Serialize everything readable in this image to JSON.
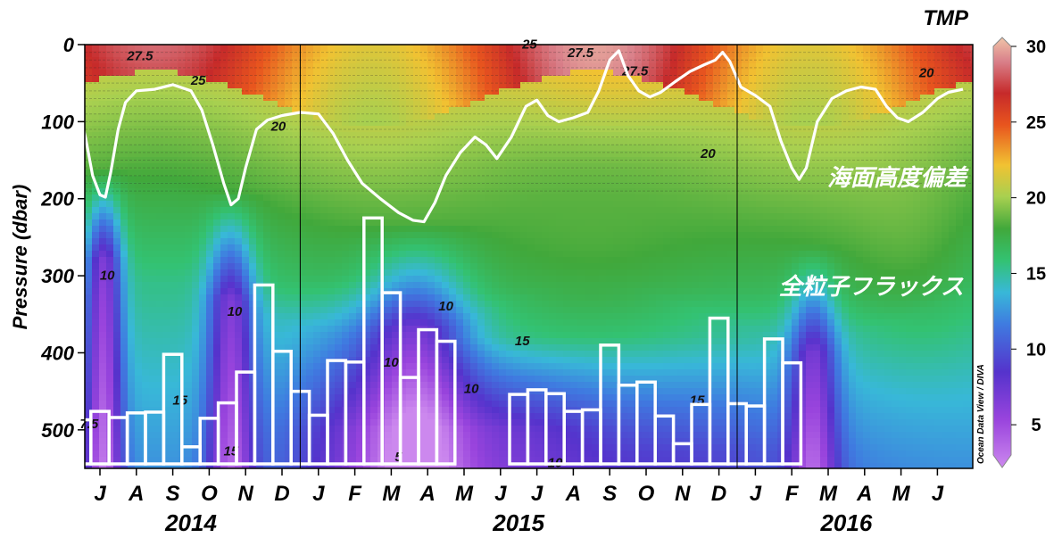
{
  "chart_data": {
    "type": "heatmap",
    "title": "TMP",
    "ylabel": "Pressure (dbar)",
    "xlabel": "",
    "ylim": [
      550,
      0
    ],
    "yticks": [
      0,
      100,
      200,
      300,
      400,
      500
    ],
    "colorbar": {
      "ticks": [
        5,
        10,
        15,
        20,
        25,
        30
      ],
      "range": [
        3,
        30
      ],
      "stops": [
        {
          "v": 3,
          "c": "#cc88ee"
        },
        {
          "v": 6,
          "c": "#9944dd"
        },
        {
          "v": 9,
          "c": "#5533cc"
        },
        {
          "v": 12,
          "c": "#3f7be0"
        },
        {
          "v": 14,
          "c": "#38b8d8"
        },
        {
          "v": 16,
          "c": "#33c272"
        },
        {
          "v": 18,
          "c": "#41a83b"
        },
        {
          "v": 20,
          "c": "#a8d050"
        },
        {
          "v": 22,
          "c": "#f1c232"
        },
        {
          "v": 24.5,
          "c": "#e8551e"
        },
        {
          "v": 26.5,
          "c": "#c62a2a"
        },
        {
          "v": 28.5,
          "c": "#d9808a"
        },
        {
          "v": 30,
          "c": "#f0c4a8"
        }
      ]
    },
    "watermark": "Ocean Data View / DIVA",
    "months": [
      "J",
      "A",
      "S",
      "O",
      "N",
      "D",
      "J",
      "F",
      "M",
      "A",
      "M",
      "J",
      "J",
      "A",
      "S",
      "O",
      "N",
      "D",
      "J",
      "F",
      "M",
      "A",
      "M",
      "J"
    ],
    "years": [
      {
        "label": "2014",
        "center_month": 2.5
      },
      {
        "label": "2015",
        "center_month": 11.5
      },
      {
        "label": "2016",
        "center_month": 20.5
      }
    ],
    "year_dividers": [
      5.5,
      17.5
    ],
    "contour_labels": [
      {
        "text": "27.5",
        "m": 1.1,
        "p": 20
      },
      {
        "text": "25",
        "m": 2.7,
        "p": 52
      },
      {
        "text": "20",
        "m": 4.9,
        "p": 112
      },
      {
        "text": "10",
        "m": 0.2,
        "p": 305
      },
      {
        "text": "10",
        "m": 3.7,
        "p": 352
      },
      {
        "text": "15",
        "m": 2.2,
        "p": 467
      },
      {
        "text": "15",
        "m": 3.6,
        "p": 533
      },
      {
        "text": "7.5",
        "m": -0.3,
        "p": 498
      },
      {
        "text": "10",
        "m": 8.0,
        "p": 418
      },
      {
        "text": "10",
        "m": 9.5,
        "p": 345
      },
      {
        "text": "10",
        "m": 10.2,
        "p": 452
      },
      {
        "text": "15",
        "m": 11.6,
        "p": 390
      },
      {
        "text": "10",
        "m": 12.5,
        "p": 548
      },
      {
        "text": "25",
        "m": 11.8,
        "p": 5
      },
      {
        "text": "27.5",
        "m": 13.2,
        "p": 16
      },
      {
        "text": "27.5",
        "m": 14.7,
        "p": 40
      },
      {
        "text": "20",
        "m": 16.7,
        "p": 147
      },
      {
        "text": "15",
        "m": 16.4,
        "p": 467
      },
      {
        "text": "20",
        "m": 22.7,
        "p": 42
      },
      {
        "text": "5",
        "m": 8.2,
        "p": 541
      }
    ],
    "series": [
      {
        "name": "海面高度偏差",
        "type": "line",
        "color": "#ffffff",
        "points": [
          [
            -0.6,
            80
          ],
          [
            -0.4,
            120
          ],
          [
            -0.2,
            170
          ],
          [
            0,
            195
          ],
          [
            0.15,
            198
          ],
          [
            0.3,
            165
          ],
          [
            0.5,
            110
          ],
          [
            0.7,
            75
          ],
          [
            1.0,
            60
          ],
          [
            1.5,
            58
          ],
          [
            2.0,
            52
          ],
          [
            2.5,
            60
          ],
          [
            2.8,
            85
          ],
          [
            3.1,
            130
          ],
          [
            3.4,
            180
          ],
          [
            3.6,
            208
          ],
          [
            3.8,
            200
          ],
          [
            4.0,
            160
          ],
          [
            4.3,
            110
          ],
          [
            4.6,
            98
          ],
          [
            5.0,
            92
          ],
          [
            5.5,
            88
          ],
          [
            6.0,
            90
          ],
          [
            6.4,
            115
          ],
          [
            6.8,
            150
          ],
          [
            7.2,
            180
          ],
          [
            7.7,
            200
          ],
          [
            8.2,
            218
          ],
          [
            8.6,
            228
          ],
          [
            8.9,
            230
          ],
          [
            9.2,
            205
          ],
          [
            9.5,
            170
          ],
          [
            9.9,
            140
          ],
          [
            10.3,
            120
          ],
          [
            10.6,
            130
          ],
          [
            10.9,
            148
          ],
          [
            11.3,
            120
          ],
          [
            11.7,
            80
          ],
          [
            12.0,
            72
          ],
          [
            12.3,
            92
          ],
          [
            12.6,
            100
          ],
          [
            13.0,
            95
          ],
          [
            13.4,
            88
          ],
          [
            13.7,
            60
          ],
          [
            14.0,
            20
          ],
          [
            14.25,
            8
          ],
          [
            14.5,
            40
          ],
          [
            14.8,
            60
          ],
          [
            15.1,
            68
          ],
          [
            15.4,
            62
          ],
          [
            15.8,
            48
          ],
          [
            16.2,
            35
          ],
          [
            16.6,
            26
          ],
          [
            16.9,
            20
          ],
          [
            17.1,
            10
          ],
          [
            17.3,
            22
          ],
          [
            17.6,
            55
          ],
          [
            18.0,
            66
          ],
          [
            18.4,
            80
          ],
          [
            18.7,
            125
          ],
          [
            19.0,
            160
          ],
          [
            19.2,
            175
          ],
          [
            19.4,
            160
          ],
          [
            19.7,
            100
          ],
          [
            20.1,
            70
          ],
          [
            20.5,
            60
          ],
          [
            20.9,
            55
          ],
          [
            21.3,
            58
          ],
          [
            21.6,
            80
          ],
          [
            21.9,
            95
          ],
          [
            22.2,
            100
          ],
          [
            22.6,
            88
          ],
          [
            23.0,
            70
          ],
          [
            23.3,
            62
          ],
          [
            23.7,
            58
          ]
        ]
      },
      {
        "name": "全粒子フラックス",
        "type": "bar",
        "color": "#ffffff",
        "bars": [
          [
            -0.75,
            -0.25,
            487
          ],
          [
            -0.25,
            0.25,
            476
          ],
          [
            0.25,
            0.75,
            484
          ],
          [
            0.75,
            1.25,
            478
          ],
          [
            1.25,
            1.75,
            477
          ],
          [
            1.75,
            2.25,
            402
          ],
          [
            2.25,
            2.75,
            522
          ],
          [
            2.75,
            3.25,
            485
          ],
          [
            3.25,
            3.75,
            465
          ],
          [
            3.75,
            4.25,
            425
          ],
          [
            4.25,
            4.75,
            312
          ],
          [
            4.75,
            5.25,
            398
          ],
          [
            5.25,
            5.75,
            450
          ],
          [
            5.75,
            6.25,
            481
          ],
          [
            6.25,
            6.75,
            410
          ],
          [
            6.75,
            7.25,
            412
          ],
          [
            7.25,
            7.75,
            225
          ],
          [
            7.75,
            8.25,
            322
          ],
          [
            8.25,
            8.75,
            432
          ],
          [
            8.75,
            9.25,
            370
          ],
          [
            9.25,
            9.75,
            385
          ],
          [
            9.75,
            10.25,
            545
          ],
          [
            10.25,
            10.75,
            545
          ],
          [
            10.75,
            11.25,
            545
          ],
          [
            11.25,
            11.75,
            454
          ],
          [
            11.75,
            12.25,
            448
          ],
          [
            12.25,
            12.75,
            453
          ],
          [
            12.75,
            13.25,
            476
          ],
          [
            13.25,
            13.75,
            474
          ],
          [
            13.75,
            14.25,
            390
          ],
          [
            14.25,
            14.75,
            442
          ],
          [
            14.75,
            15.25,
            438
          ],
          [
            15.25,
            15.75,
            482
          ],
          [
            15.75,
            16.25,
            518
          ],
          [
            16.25,
            16.75,
            467
          ],
          [
            16.75,
            17.25,
            355
          ],
          [
            17.25,
            17.75,
            466
          ],
          [
            17.75,
            18.25,
            469
          ],
          [
            18.25,
            18.75,
            382
          ],
          [
            18.75,
            19.25,
            413
          ]
        ]
      }
    ],
    "annotations": [
      {
        "text": "海面高度偏差",
        "series": "海面高度偏差"
      },
      {
        "text": "全粒子フラックス",
        "series": "全粒子フラックス"
      }
    ]
  }
}
